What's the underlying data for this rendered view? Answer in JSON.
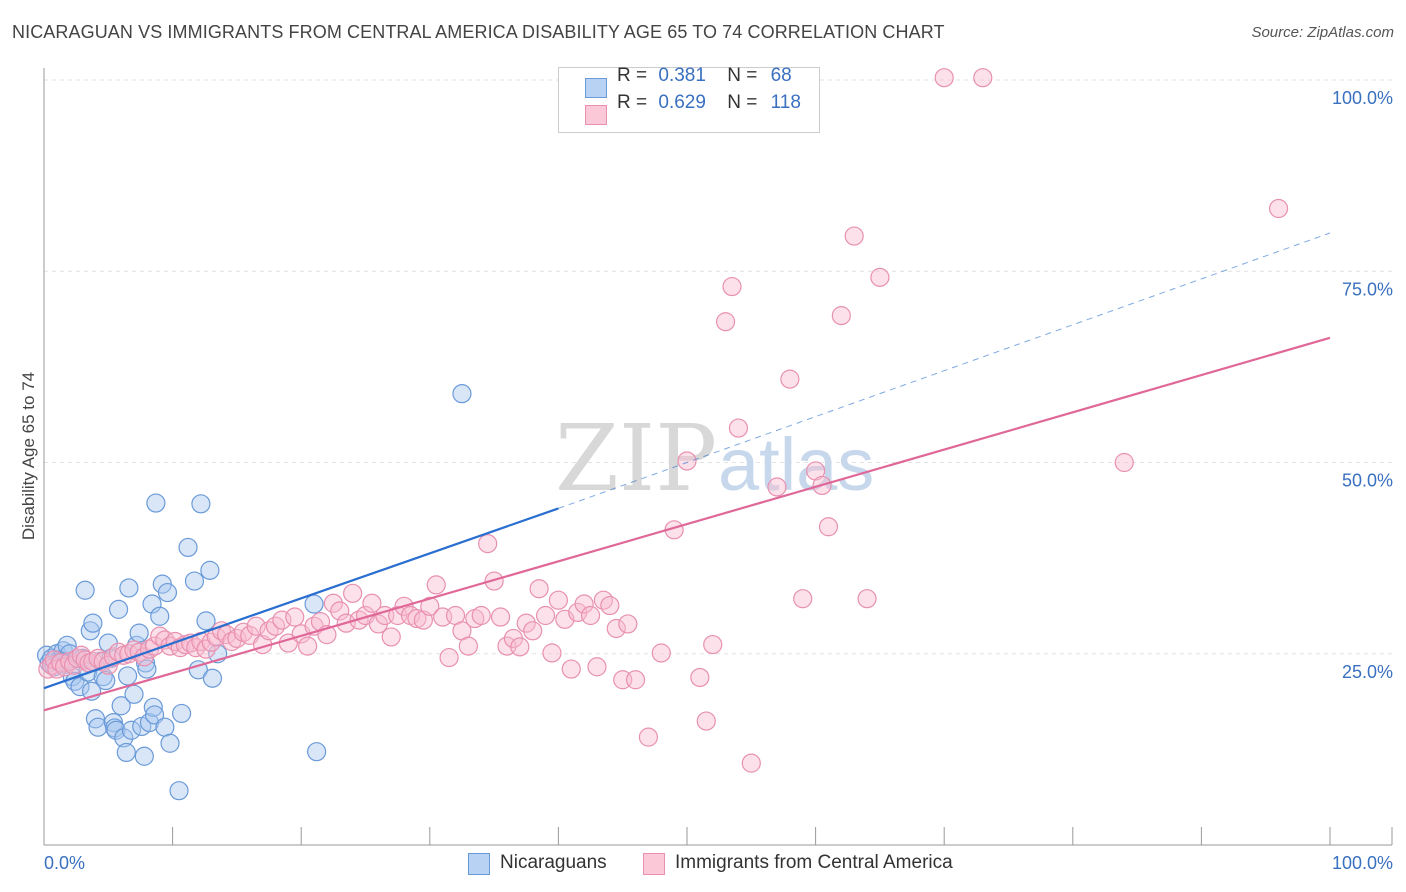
{
  "title": "NICARAGUAN VS IMMIGRANTS FROM CENTRAL AMERICA DISABILITY AGE 65 TO 74 CORRELATION CHART",
  "source": "Source: ZipAtlas.com",
  "watermark": {
    "zip": "ZIP",
    "atlas": "atlas"
  },
  "legend": {
    "r_label": "R =",
    "n_label": "N =",
    "rows": [
      {
        "r": "0.381",
        "n": "68"
      },
      {
        "r": "0.629",
        "n": "118"
      }
    ]
  },
  "colors": {
    "blue_fill": "#a8c8f0",
    "blue_stroke": "#6a9ad8",
    "blue_line": "#2a6fd0",
    "pink_fill": "#f8bcd0",
    "pink_stroke": "#e890b0",
    "pink_line": "#e06898",
    "tick_text": "#3a70c0",
    "grid": "#e2e2e2"
  },
  "chart_data": {
    "type": "scatter",
    "title": "NICARAGUAN VS IMMIGRANTS FROM CENTRAL AMERICA DISABILITY AGE 65 TO 74 CORRELATION CHART",
    "xlabel": "",
    "ylabel": "Disability Age 65 to 74",
    "xlim": [
      0,
      100
    ],
    "ylim": [
      0,
      103
    ],
    "x_tick_labels": [
      "0.0%",
      "100.0%"
    ],
    "y_ticks": [
      25,
      50,
      75,
      100
    ],
    "y_tick_labels": [
      "25.0%",
      "50.0%",
      "75.0%",
      "100.0%"
    ],
    "series": [
      {
        "name": "Nicaraguans",
        "r": 0.381,
        "n": 68,
        "trend": {
          "solid": [
            [
              0,
              20.5
            ],
            [
              40,
              44.0
            ]
          ],
          "dashed": [
            [
              40,
              44.0
            ],
            [
              100,
              80.0
            ]
          ]
        },
        "points": [
          [
            0.2,
            24.8
          ],
          [
            0.4,
            23.8
          ],
          [
            0.6,
            24.4
          ],
          [
            0.8,
            23.3
          ],
          [
            1.0,
            25.0
          ],
          [
            1.2,
            24.2
          ],
          [
            1.5,
            25.4
          ],
          [
            1.6,
            23.6
          ],
          [
            1.8,
            26.1
          ],
          [
            2.0,
            25.0
          ],
          [
            2.2,
            22.0
          ],
          [
            2.4,
            21.4
          ],
          [
            2.6,
            24.4
          ],
          [
            2.8,
            20.7
          ],
          [
            3.0,
            24.4
          ],
          [
            3.2,
            33.3
          ],
          [
            3.4,
            22.6
          ],
          [
            3.6,
            28.0
          ],
          [
            3.7,
            20.1
          ],
          [
            3.8,
            29.0
          ],
          [
            4.0,
            16.5
          ],
          [
            4.2,
            15.4
          ],
          [
            4.4,
            24.0
          ],
          [
            4.6,
            22.0
          ],
          [
            4.8,
            21.5
          ],
          [
            5.0,
            26.4
          ],
          [
            5.2,
            24.4
          ],
          [
            5.4,
            16.0
          ],
          [
            5.5,
            15.3
          ],
          [
            5.6,
            15.0
          ],
          [
            5.8,
            30.8
          ],
          [
            6.0,
            18.2
          ],
          [
            6.2,
            14.0
          ],
          [
            6.4,
            12.1
          ],
          [
            6.5,
            22.1
          ],
          [
            6.6,
            33.6
          ],
          [
            6.8,
            15.0
          ],
          [
            7.0,
            19.7
          ],
          [
            7.2,
            26.1
          ],
          [
            7.4,
            27.7
          ],
          [
            7.6,
            15.5
          ],
          [
            7.8,
            11.6
          ],
          [
            7.9,
            23.8
          ],
          [
            8.0,
            23.0
          ],
          [
            8.2,
            16.0
          ],
          [
            8.4,
            31.5
          ],
          [
            8.5,
            18.0
          ],
          [
            8.6,
            17.0
          ],
          [
            8.7,
            44.7
          ],
          [
            9.0,
            29.9
          ],
          [
            9.2,
            34.1
          ],
          [
            9.4,
            15.4
          ],
          [
            9.6,
            33.0
          ],
          [
            9.8,
            13.3
          ],
          [
            10.5,
            7.1
          ],
          [
            10.7,
            17.2
          ],
          [
            11.2,
            38.9
          ],
          [
            11.7,
            34.5
          ],
          [
            12.0,
            22.9
          ],
          [
            12.2,
            44.6
          ],
          [
            12.6,
            29.3
          ],
          [
            12.9,
            35.9
          ],
          [
            13.1,
            21.8
          ],
          [
            13.5,
            25.0
          ],
          [
            21.0,
            31.5
          ],
          [
            21.2,
            12.2
          ],
          [
            32.5,
            59.0
          ],
          [
            1.3,
            24.0
          ]
        ]
      },
      {
        "name": "Immigrants from Central America",
        "r": 0.629,
        "n": 118,
        "trend": {
          "solid": [
            [
              0,
              17.6
            ],
            [
              100,
              66.3
            ]
          ]
        },
        "points": [
          [
            0.3,
            23.0
          ],
          [
            0.6,
            23.5
          ],
          [
            0.8,
            24.2
          ],
          [
            1.0,
            23.0
          ],
          [
            1.3,
            23.8
          ],
          [
            1.6,
            23.3
          ],
          [
            2.0,
            24.0
          ],
          [
            2.3,
            23.5
          ],
          [
            2.6,
            24.4
          ],
          [
            2.9,
            24.8
          ],
          [
            3.2,
            24.2
          ],
          [
            3.5,
            23.8
          ],
          [
            3.8,
            24.0
          ],
          [
            4.2,
            24.4
          ],
          [
            4.6,
            24.0
          ],
          [
            5.0,
            23.5
          ],
          [
            5.4,
            24.6
          ],
          [
            5.8,
            25.2
          ],
          [
            6.2,
            24.8
          ],
          [
            6.6,
            25.0
          ],
          [
            7.0,
            25.5
          ],
          [
            7.4,
            25.2
          ],
          [
            7.8,
            24.6
          ],
          [
            8.2,
            25.6
          ],
          [
            8.6,
            26.0
          ],
          [
            9.0,
            27.3
          ],
          [
            9.4,
            26.8
          ],
          [
            9.8,
            26.0
          ],
          [
            10.2,
            26.6
          ],
          [
            10.6,
            25.8
          ],
          [
            11.0,
            26.2
          ],
          [
            11.4,
            26.4
          ],
          [
            11.8,
            25.8
          ],
          [
            12.2,
            26.6
          ],
          [
            12.6,
            25.6
          ],
          [
            13.0,
            26.5
          ],
          [
            13.4,
            27.2
          ],
          [
            13.8,
            28.0
          ],
          [
            14.2,
            27.5
          ],
          [
            14.6,
            26.6
          ],
          [
            15.0,
            27.0
          ],
          [
            15.5,
            27.8
          ],
          [
            16.0,
            27.4
          ],
          [
            16.5,
            28.6
          ],
          [
            17.0,
            26.2
          ],
          [
            17.5,
            28.0
          ],
          [
            18.0,
            28.6
          ],
          [
            18.5,
            29.4
          ],
          [
            19.0,
            26.4
          ],
          [
            19.5,
            29.8
          ],
          [
            20.0,
            27.6
          ],
          [
            20.5,
            26.0
          ],
          [
            21.0,
            28.6
          ],
          [
            21.5,
            29.2
          ],
          [
            22.0,
            27.5
          ],
          [
            22.5,
            31.6
          ],
          [
            23.0,
            30.6
          ],
          [
            23.5,
            29.0
          ],
          [
            24.0,
            32.9
          ],
          [
            24.5,
            29.4
          ],
          [
            25.0,
            30.0
          ],
          [
            25.5,
            31.6
          ],
          [
            26.0,
            28.9
          ],
          [
            26.5,
            30.0
          ],
          [
            27.0,
            27.2
          ],
          [
            27.5,
            30.0
          ],
          [
            28.0,
            31.2
          ],
          [
            28.5,
            30.0
          ],
          [
            29.0,
            29.6
          ],
          [
            29.5,
            29.4
          ],
          [
            30.0,
            31.2
          ],
          [
            30.5,
            34.0
          ],
          [
            31.0,
            29.8
          ],
          [
            31.5,
            24.5
          ],
          [
            32.0,
            30.0
          ],
          [
            32.5,
            28.0
          ],
          [
            33.0,
            26.0
          ],
          [
            33.5,
            29.6
          ],
          [
            34.0,
            30.0
          ],
          [
            34.5,
            39.4
          ],
          [
            35.0,
            34.5
          ],
          [
            35.5,
            29.8
          ],
          [
            36.0,
            26.0
          ],
          [
            36.5,
            27.0
          ],
          [
            37.0,
            25.9
          ],
          [
            37.5,
            29.0
          ],
          [
            38.0,
            28.0
          ],
          [
            38.5,
            33.5
          ],
          [
            39.0,
            30.0
          ],
          [
            39.5,
            25.1
          ],
          [
            40.0,
            32.0
          ],
          [
            40.5,
            29.5
          ],
          [
            41.0,
            23.0
          ],
          [
            41.5,
            30.4
          ],
          [
            42.0,
            31.5
          ],
          [
            42.5,
            30.0
          ],
          [
            43.0,
            23.3
          ],
          [
            43.5,
            32.0
          ],
          [
            44.0,
            31.3
          ],
          [
            44.5,
            28.3
          ],
          [
            45.0,
            21.6
          ],
          [
            45.4,
            28.9
          ],
          [
            46.0,
            21.6
          ],
          [
            47.0,
            14.1
          ],
          [
            48.0,
            25.1
          ],
          [
            49.0,
            41.2
          ],
          [
            50.0,
            50.2
          ],
          [
            51.0,
            21.9
          ],
          [
            51.5,
            16.2
          ],
          [
            52.0,
            26.2
          ],
          [
            53.0,
            68.4
          ],
          [
            53.5,
            73.0
          ],
          [
            54.0,
            54.5
          ],
          [
            55.0,
            10.7
          ],
          [
            57.0,
            46.8
          ],
          [
            58.0,
            60.9
          ],
          [
            59.0,
            32.2
          ],
          [
            60.0,
            48.9
          ],
          [
            60.5,
            47.0
          ],
          [
            61.0,
            41.6
          ],
          [
            62.0,
            69.2
          ],
          [
            63.0,
            79.6
          ],
          [
            64.0,
            32.2
          ],
          [
            65.0,
            74.2
          ],
          [
            70.0,
            100.3
          ],
          [
            73.0,
            100.3
          ],
          [
            84.0,
            50.0
          ],
          [
            96.0,
            83.2
          ]
        ]
      }
    ]
  },
  "bottom_legend": [
    "Nicaraguans",
    "Immigrants from Central America"
  ]
}
